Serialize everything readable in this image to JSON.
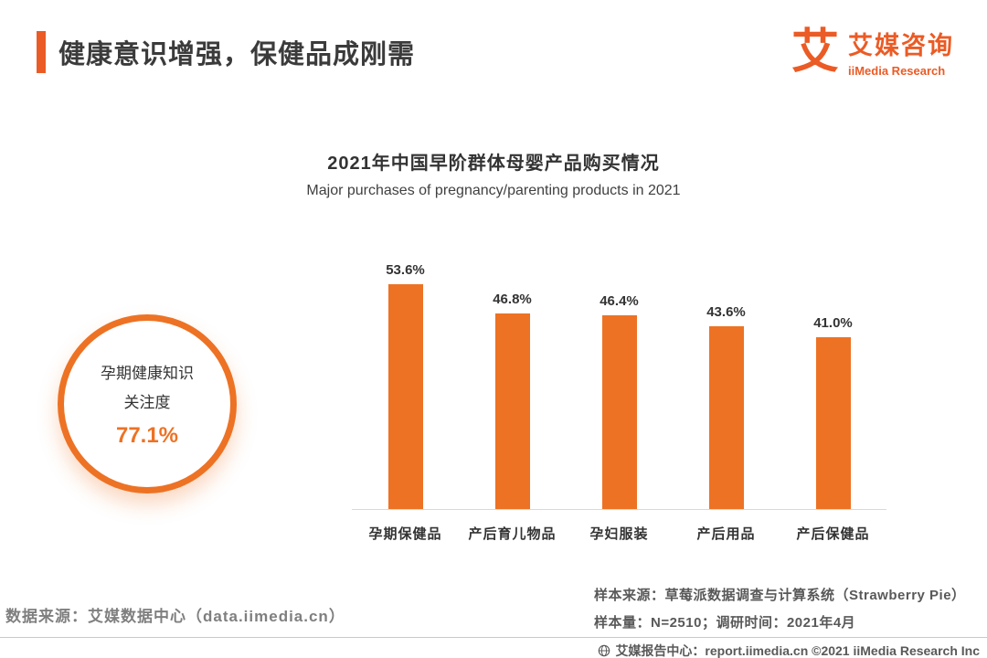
{
  "colors": {
    "accent": "#EB5B25",
    "bar": "#ED7224",
    "title_text": "#3B3B3B",
    "gray_text": "#7F7F7F"
  },
  "header": {
    "title": "健康意识增强，保健品成刚需",
    "logo_glyph": "艾",
    "brand_cn": "艾媒咨询",
    "brand_en": "iiMedia Research"
  },
  "highlight": {
    "line1": "孕期健康知识",
    "line2": "关注度",
    "value": "77.1%"
  },
  "chart_data": {
    "type": "bar",
    "title": "2021年中国早阶群体母婴产品购买情况",
    "subtitle": "Major purchases of pregnancy/parenting products in 2021",
    "categories": [
      "孕期保健品",
      "产后育儿物品",
      "孕妇服装",
      "产后用品",
      "产后保健品"
    ],
    "values": [
      53.6,
      46.8,
      46.4,
      43.6,
      41.0
    ],
    "unit": "%",
    "ylim": [
      0,
      60
    ],
    "bar_color": "#ED7224",
    "grid": false,
    "value_labels": true,
    "legend": "none"
  },
  "footer": {
    "data_source": "数据来源：艾媒数据中心（data.iimedia.cn）",
    "sample_source": "样本来源：草莓派数据调查与计算系统（Strawberry Pie）",
    "sample_info": "样本量：N=2510；调研时间：2021年4月",
    "report_line": "艾媒报告中心：report.iimedia.cn  ©2021  iiMedia Research Inc"
  }
}
